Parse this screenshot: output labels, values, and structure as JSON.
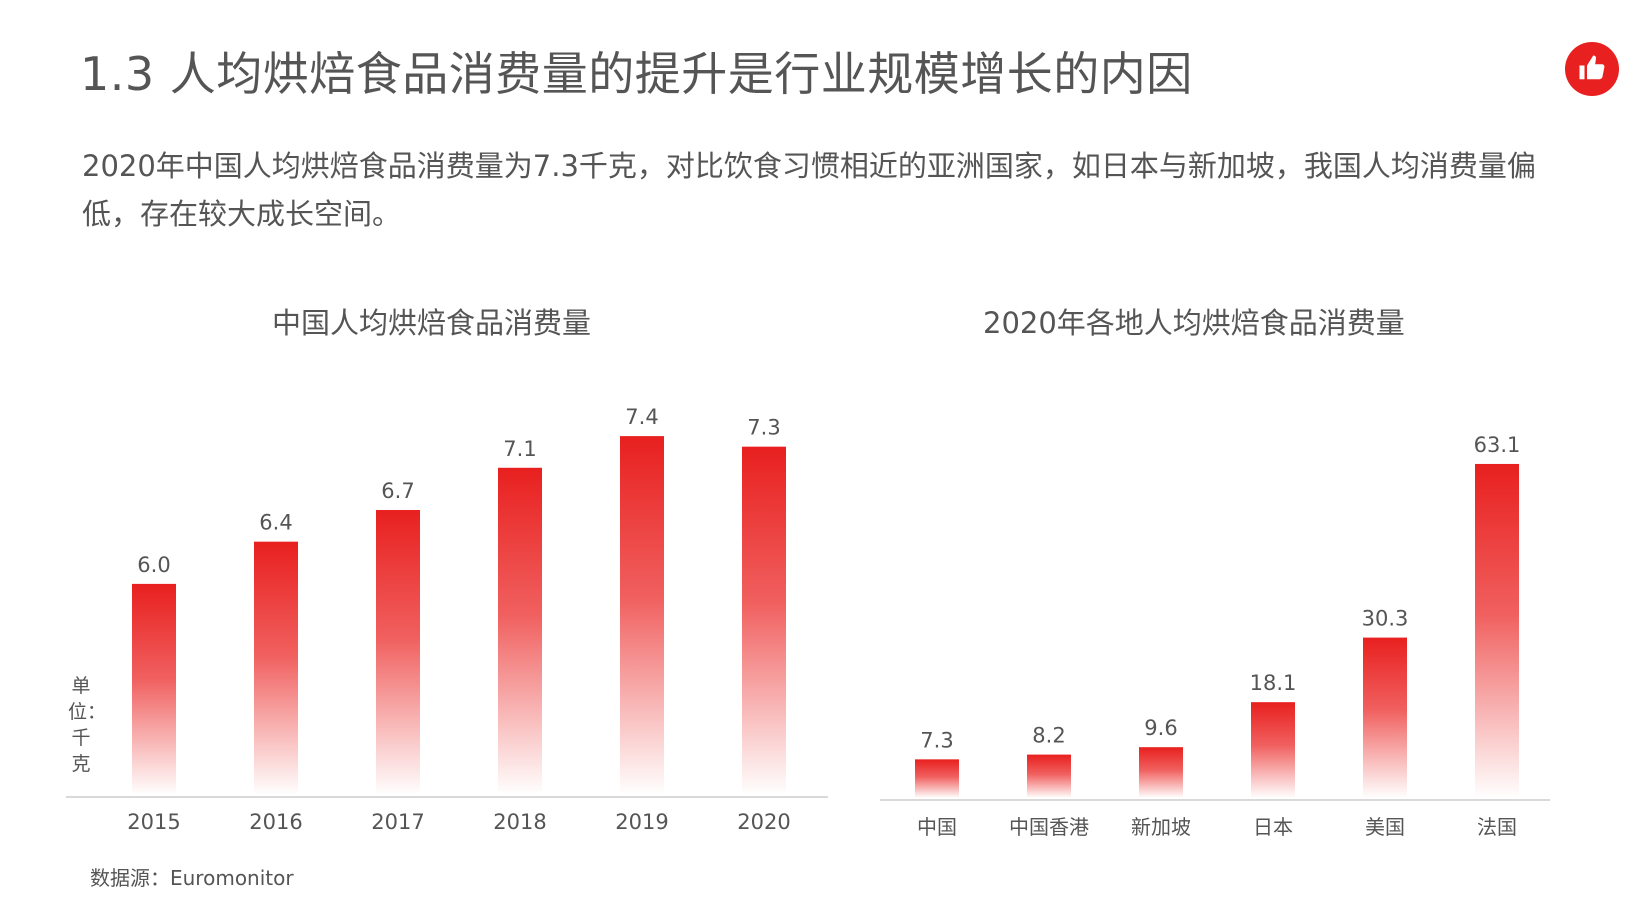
{
  "header": {
    "title": "1.3 人均烘焙食品消费量的提升是行业规模增长的内因",
    "subtitle": "2020年中国人均烘焙食品消费量为7.3千克，对比饮食习惯相近的亚洲国家，如日本与新加坡，我国人均消费量偏低，存在较大成长空间。",
    "logo_icon": "thumbs-up-icon"
  },
  "colors": {
    "accent": "#e8201f",
    "bar_top": "#e8201f",
    "bar_bottom": "#ffffff",
    "text": "#555555",
    "axis": "#d9d9d9"
  },
  "unit_label": "单位：千克",
  "source": "数据源：Euromonitor",
  "chart_data": [
    {
      "type": "bar",
      "title": "中国人均烘焙食品消费量",
      "categories": [
        "2015",
        "2016",
        "2017",
        "2018",
        "2019",
        "2020"
      ],
      "values": [
        6.0,
        6.4,
        6.7,
        7.1,
        7.4,
        7.3
      ],
      "value_labels": [
        "6.0",
        "6.4",
        "6.7",
        "7.1",
        "7.4",
        "7.3"
      ],
      "ylim": [
        4.0,
        7.6
      ],
      "grid": false,
      "legend": "none"
    },
    {
      "type": "bar",
      "title": "2020年各地人均烘焙食品消费量",
      "categories": [
        "中国",
        "中国香港",
        "新加坡",
        "日本",
        "美国",
        "法国"
      ],
      "values": [
        7.3,
        8.2,
        9.6,
        18.1,
        30.3,
        63.1
      ],
      "value_labels": [
        "7.3",
        "8.2",
        "9.6",
        "18.1",
        "30.3",
        "63.1"
      ],
      "ylim": [
        0,
        68
      ],
      "grid": false,
      "legend": "none"
    }
  ]
}
